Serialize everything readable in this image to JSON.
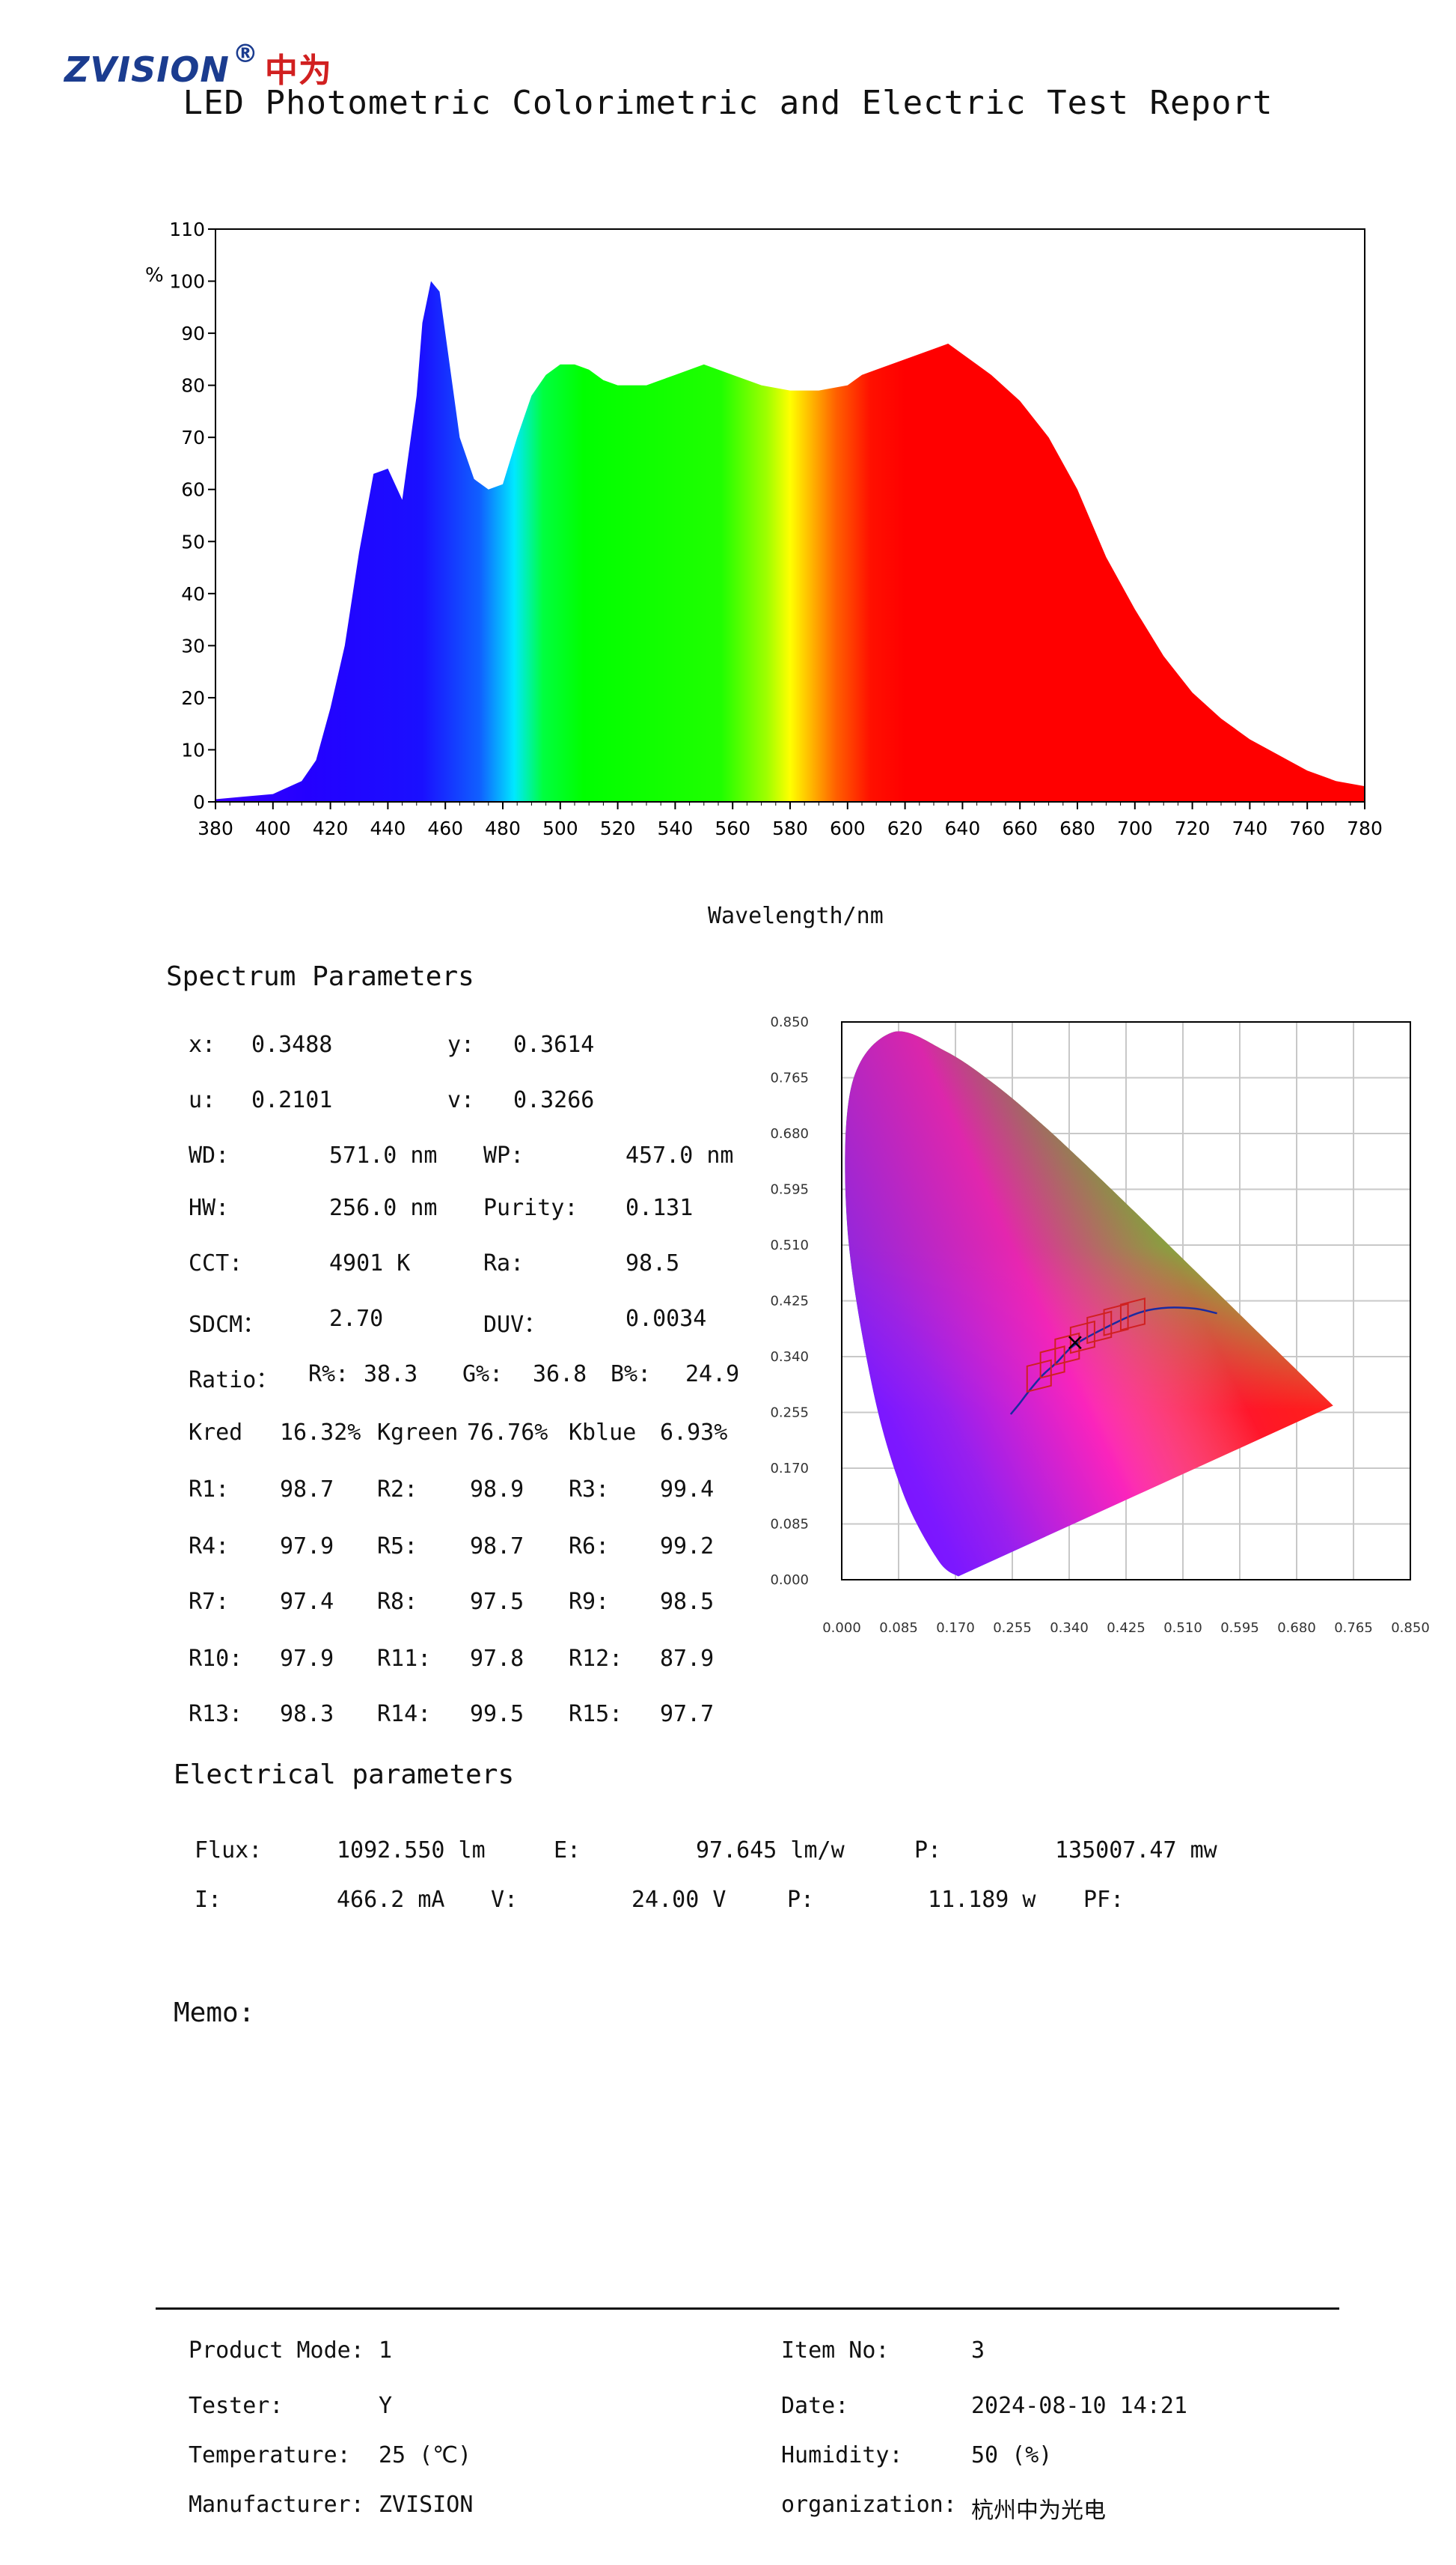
{
  "header": {
    "logo_text": "ZVISION",
    "logo_mark": "®",
    "logo_cn": "中为",
    "title": "LED Photometric Colorimetric and Electric Test Report"
  },
  "chart_data": [
    {
      "type": "area",
      "title": "",
      "xlabel": "Wavelength/nm",
      "ylabel": "%",
      "xlim": [
        380,
        780
      ],
      "ylim": [
        0,
        110
      ],
      "x_ticks": [
        380,
        400,
        420,
        440,
        460,
        480,
        500,
        520,
        540,
        560,
        580,
        600,
        620,
        640,
        660,
        680,
        700,
        720,
        740,
        760,
        780
      ],
      "y_ticks": [
        0,
        10,
        20,
        30,
        40,
        50,
        60,
        70,
        80,
        90,
        100,
        110
      ],
      "fill": "visible-spectrum gradient",
      "x": [
        380,
        390,
        400,
        410,
        415,
        420,
        425,
        430,
        435,
        440,
        445,
        450,
        452,
        455,
        458,
        460,
        465,
        470,
        475,
        480,
        485,
        490,
        495,
        500,
        505,
        510,
        515,
        520,
        530,
        540,
        550,
        560,
        570,
        580,
        590,
        600,
        605,
        610,
        620,
        630,
        635,
        640,
        645,
        650,
        660,
        670,
        680,
        690,
        700,
        710,
        720,
        730,
        740,
        750,
        760,
        770,
        780
      ],
      "y": [
        0.5,
        1,
        1.5,
        4,
        8,
        18,
        30,
        48,
        63,
        64,
        58,
        78,
        92,
        100,
        98,
        90,
        70,
        62,
        60,
        61,
        70,
        78,
        82,
        84,
        84,
        83,
        81,
        80,
        80,
        82,
        84,
        82,
        80,
        79,
        79,
        80,
        82,
        83,
        85,
        87,
        88,
        86,
        84,
        82,
        77,
        70,
        60,
        47,
        37,
        28,
        21,
        16,
        12,
        9,
        6,
        4,
        3
      ]
    },
    {
      "type": "scatter",
      "title": "",
      "xlabel": "",
      "ylabel": "",
      "xlim": [
        0,
        0.85
      ],
      "ylim": [
        0,
        0.85
      ],
      "x_ticks": [
        "0.000",
        "0.085",
        "0.170",
        "0.255",
        "0.340",
        "0.425",
        "0.510",
        "0.595",
        "0.680",
        "0.765",
        "0.850"
      ],
      "y_ticks": [
        "0.000",
        "0.085",
        "0.170",
        "0.255",
        "0.340",
        "0.425",
        "0.510",
        "0.595",
        "0.680",
        "0.765",
        "0.850"
      ],
      "grid": true,
      "spectrum_locus": [
        [
          0.1741,
          0.005
        ],
        [
          0.144,
          0.0297
        ],
        [
          0.0913,
          0.1327
        ],
        [
          0.0454,
          0.295
        ],
        [
          0.0082,
          0.5384
        ],
        [
          0.0139,
          0.7502
        ],
        [
          0.0743,
          0.8338
        ],
        [
          0.1547,
          0.8059
        ],
        [
          0.2296,
          0.7543
        ],
        [
          0.3016,
          0.6923
        ],
        [
          0.3731,
          0.6245
        ],
        [
          0.4441,
          0.5547
        ],
        [
          0.5125,
          0.4866
        ],
        [
          0.5752,
          0.4242
        ],
        [
          0.627,
          0.3725
        ],
        [
          0.6658,
          0.334
        ],
        [
          0.7347,
          0.2653
        ]
      ],
      "planckian_locus": [
        [
          0.2525,
          0.2522
        ],
        [
          0.2647,
          0.2672
        ],
        [
          0.2806,
          0.2883
        ],
        [
          0.3003,
          0.3117
        ],
        [
          0.3221,
          0.3318
        ],
        [
          0.3447,
          0.3553
        ],
        [
          0.3805,
          0.3768
        ],
        [
          0.4369,
          0.4041
        ],
        [
          0.4781,
          0.4139
        ],
        [
          0.5267,
          0.4133
        ],
        [
          0.561,
          0.4059
        ]
      ],
      "point": {
        "x": 0.3488,
        "y": 0.3614
      }
    }
  ],
  "spectrum": {
    "section_title": "Spectrum Parameters",
    "x_label": "x:",
    "x_val": "0.3488",
    "y_label": "y:",
    "y_val": "0.3614",
    "u_label": "u:",
    "u_val": "0.2101",
    "v_label": "v:",
    "v_val": "0.3266",
    "wd_label": "WD:",
    "wd_val": "571.0 nm",
    "wp_label": "WP:",
    "wp_val": "457.0 nm",
    "hw_label": "HW:",
    "hw_val": "256.0 nm",
    "purity_label": "Purity:",
    "purity_val": "0.131",
    "cct_label": "CCT:",
    "cct_val": "4901 K",
    "ra_label": "Ra:",
    "ra_val": "98.5",
    "sdcm_label": "SDCM：",
    "sdcm_val": "2.70",
    "duv_label": "DUV：",
    "duv_val": "0.0034",
    "ratio_label": "Ratio：",
    "r_label": "R%:",
    "r_val": "38.3",
    "g_label": "G%:",
    "g_val": "36.8",
    "b_label": "B%:",
    "b_val": "24.9",
    "kred_label": "Kred",
    "kred_val": "16.32%",
    "kgreen_label": "Kgreen",
    "kgreen_val": "76.76%",
    "kblue_label": "Kblue",
    "kblue_val": "6.93%",
    "ri": [
      {
        "label": "R1:",
        "value": "98.7"
      },
      {
        "label": "R2:",
        "value": "98.9"
      },
      {
        "label": "R3:",
        "value": "99.4"
      },
      {
        "label": "R4:",
        "value": "97.9"
      },
      {
        "label": "R5:",
        "value": "98.7"
      },
      {
        "label": "R6:",
        "value": "99.2"
      },
      {
        "label": "R7:",
        "value": "97.4"
      },
      {
        "label": "R8:",
        "value": "97.5"
      },
      {
        "label": "R9:",
        "value": "98.5"
      },
      {
        "label": "R10:",
        "value": "97.9"
      },
      {
        "label": "R11:",
        "value": "97.8"
      },
      {
        "label": "R12:",
        "value": "87.9"
      },
      {
        "label": "R13:",
        "value": "98.3"
      },
      {
        "label": "R14:",
        "value": "99.5"
      },
      {
        "label": "R15:",
        "value": "97.7"
      }
    ]
  },
  "electrical": {
    "section_title": "Electrical parameters",
    "flux_label": "Flux:",
    "flux_val": "1092.550 lm",
    "e_label": "E:",
    "e_val": "97.645 lm/w",
    "p1_label": "P:",
    "p1_val": "135007.47 mw",
    "i_label": "I:",
    "i_val": "466.2 mA",
    "v_label": "V:",
    "v_val": "24.00 V",
    "p2_label": "P:",
    "p2_val": "11.189 w",
    "pf_label": "PF:"
  },
  "memo": {
    "label": "Memo:"
  },
  "footer": {
    "product_label": "Product Mode:",
    "product_val": "1",
    "item_label": "Item No:",
    "item_val": "3",
    "tester_label": "Tester:",
    "tester_val": "Y",
    "date_label": "Date:",
    "date_val": "2024-08-10 14:21",
    "temp_label": "Temperature:",
    "temp_val": "25 (℃)",
    "humidity_label": "Humidity:",
    "humidity_val": "50 (%)",
    "manufacturer_label": "Manufacturer:",
    "manufacturer_val": "ZVISION",
    "org_label": "organization:",
    "org_val": "杭州中为光电"
  }
}
